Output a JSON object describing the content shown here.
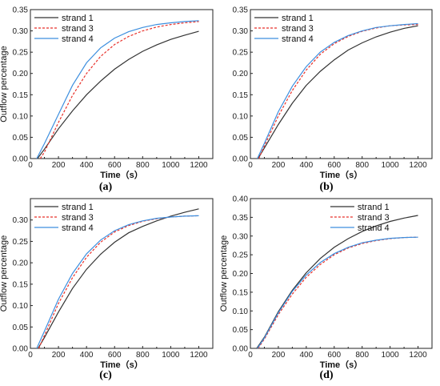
{
  "chart_data": [
    {
      "panel_label": "(a)",
      "type": "line",
      "xlabel": "Time（s）",
      "ylabel": "Outflow percentage",
      "xlim": [
        0,
        1300
      ],
      "ylim": [
        0,
        0.35
      ],
      "xticks": [
        0,
        200,
        400,
        600,
        800,
        1000,
        1200
      ],
      "yticks": [
        0.0,
        0.05,
        0.1,
        0.15,
        0.2,
        0.25,
        0.3,
        0.35
      ],
      "legend_position": "top-left",
      "series": [
        {
          "name": "strand 1",
          "color": "#333333",
          "dash": "solid",
          "x": [
            50,
            100,
            200,
            300,
            400,
            500,
            600,
            700,
            800,
            900,
            1000,
            1100,
            1200
          ],
          "y": [
            0.0,
            0.022,
            0.07,
            0.112,
            0.15,
            0.182,
            0.21,
            0.233,
            0.252,
            0.267,
            0.28,
            0.29,
            0.299
          ]
        },
        {
          "name": "strand 3",
          "color": "#e8302a",
          "dash": "dashed",
          "x": [
            70,
            100,
            200,
            300,
            400,
            500,
            600,
            700,
            800,
            900,
            1000,
            1100,
            1200
          ],
          "y": [
            0.0,
            0.015,
            0.085,
            0.148,
            0.2,
            0.24,
            0.268,
            0.287,
            0.3,
            0.309,
            0.315,
            0.319,
            0.322
          ]
        },
        {
          "name": "strand 4",
          "color": "#3d8fdf",
          "dash": "solid",
          "x": [
            45,
            100,
            200,
            300,
            400,
            500,
            600,
            700,
            800,
            900,
            1000,
            1100,
            1200
          ],
          "y": [
            0.0,
            0.035,
            0.104,
            0.172,
            0.225,
            0.26,
            0.283,
            0.298,
            0.308,
            0.315,
            0.319,
            0.322,
            0.324
          ]
        }
      ]
    },
    {
      "panel_label": "(b)",
      "type": "line",
      "xlabel": "Time（s）",
      "ylabel": "",
      "xlim": [
        0,
        1300
      ],
      "ylim": [
        0,
        0.35
      ],
      "xticks": [
        0,
        200,
        400,
        600,
        800,
        1000,
        1200
      ],
      "yticks": [
        0.0,
        0.05,
        0.1,
        0.15,
        0.2,
        0.25,
        0.3,
        0.35
      ],
      "legend_position": "top-left",
      "series": [
        {
          "name": "strand 1",
          "color": "#333333",
          "dash": "solid",
          "x": [
            55,
            100,
            200,
            300,
            400,
            500,
            600,
            700,
            800,
            900,
            1000,
            1100,
            1200
          ],
          "y": [
            0.0,
            0.025,
            0.08,
            0.13,
            0.172,
            0.205,
            0.232,
            0.255,
            0.272,
            0.286,
            0.297,
            0.306,
            0.312
          ]
        },
        {
          "name": "strand 3",
          "color": "#e8302a",
          "dash": "dashed",
          "x": [
            60,
            100,
            200,
            300,
            400,
            500,
            600,
            700,
            800,
            900,
            1000,
            1100,
            1200
          ],
          "y": [
            0.0,
            0.03,
            0.1,
            0.16,
            0.208,
            0.245,
            0.27,
            0.287,
            0.299,
            0.307,
            0.312,
            0.314,
            0.315
          ]
        },
        {
          "name": "strand 4",
          "color": "#3d8fdf",
          "dash": "solid",
          "x": [
            50,
            100,
            200,
            300,
            400,
            500,
            600,
            700,
            800,
            900,
            1000,
            1100,
            1200
          ],
          "y": [
            0.0,
            0.036,
            0.11,
            0.17,
            0.216,
            0.25,
            0.273,
            0.289,
            0.3,
            0.308,
            0.312,
            0.315,
            0.317
          ]
        }
      ]
    },
    {
      "panel_label": "(c)",
      "type": "line",
      "xlabel": "Time（s）",
      "ylabel": "Outflow percentage",
      "xlim": [
        0,
        1300
      ],
      "ylim": [
        0,
        0.35
      ],
      "xticks": [
        0,
        200,
        400,
        600,
        800,
        1000,
        1200
      ],
      "yticks": [
        0.0,
        0.05,
        0.1,
        0.15,
        0.2,
        0.25,
        0.3
      ],
      "legend_position": "top-left",
      "series": [
        {
          "name": "strand 1",
          "color": "#333333",
          "dash": "solid",
          "x": [
            55,
            100,
            200,
            300,
            400,
            500,
            600,
            700,
            800,
            900,
            1000,
            1100,
            1200
          ],
          "y": [
            0.0,
            0.025,
            0.085,
            0.14,
            0.185,
            0.22,
            0.248,
            0.27,
            0.285,
            0.298,
            0.309,
            0.318,
            0.326
          ]
        },
        {
          "name": "strand 3",
          "color": "#e8302a",
          "dash": "dashed",
          "x": [
            60,
            100,
            200,
            300,
            400,
            500,
            600,
            700,
            800,
            900,
            1000,
            1100,
            1200
          ],
          "y": [
            0.0,
            0.03,
            0.105,
            0.165,
            0.213,
            0.248,
            0.272,
            0.287,
            0.297,
            0.303,
            0.307,
            0.309,
            0.31
          ]
        },
        {
          "name": "strand 4",
          "color": "#3d8fdf",
          "dash": "solid",
          "x": [
            45,
            100,
            200,
            300,
            400,
            500,
            600,
            700,
            800,
            900,
            1000,
            1100,
            1200
          ],
          "y": [
            0.0,
            0.04,
            0.115,
            0.175,
            0.221,
            0.253,
            0.275,
            0.289,
            0.298,
            0.304,
            0.307,
            0.309,
            0.31
          ]
        }
      ]
    },
    {
      "panel_label": "(d)",
      "type": "line",
      "xlabel": "Time（s）",
      "ylabel": "Outflow percentage",
      "xlim": [
        0,
        1300
      ],
      "ylim": [
        0,
        0.4
      ],
      "xticks": [
        0,
        200,
        400,
        600,
        800,
        1000,
        1200
      ],
      "yticks": [
        0.0,
        0.05,
        0.1,
        0.15,
        0.2,
        0.25,
        0.3,
        0.35,
        0.4
      ],
      "legend_position": "top-right",
      "series": [
        {
          "name": "strand 1",
          "color": "#333333",
          "dash": "solid",
          "x": [
            45,
            100,
            200,
            300,
            400,
            500,
            600,
            700,
            800,
            900,
            1000,
            1100,
            1200
          ],
          "y": [
            0.0,
            0.03,
            0.098,
            0.155,
            0.202,
            0.24,
            0.27,
            0.293,
            0.312,
            0.327,
            0.339,
            0.348,
            0.355
          ]
        },
        {
          "name": "strand 3",
          "color": "#e8302a",
          "dash": "dashed",
          "x": [
            55,
            100,
            200,
            300,
            400,
            500,
            600,
            700,
            800,
            900,
            1000,
            1100,
            1200
          ],
          "y": [
            0.0,
            0.025,
            0.09,
            0.145,
            0.19,
            0.224,
            0.25,
            0.268,
            0.28,
            0.288,
            0.293,
            0.296,
            0.297
          ]
        },
        {
          "name": "strand 4",
          "color": "#3d8fdf",
          "dash": "solid",
          "x": [
            50,
            100,
            200,
            300,
            400,
            500,
            600,
            700,
            800,
            900,
            1000,
            1100,
            1200
          ],
          "y": [
            0.0,
            0.028,
            0.095,
            0.152,
            0.196,
            0.229,
            0.253,
            0.27,
            0.282,
            0.289,
            0.294,
            0.296,
            0.297
          ]
        }
      ]
    }
  ]
}
